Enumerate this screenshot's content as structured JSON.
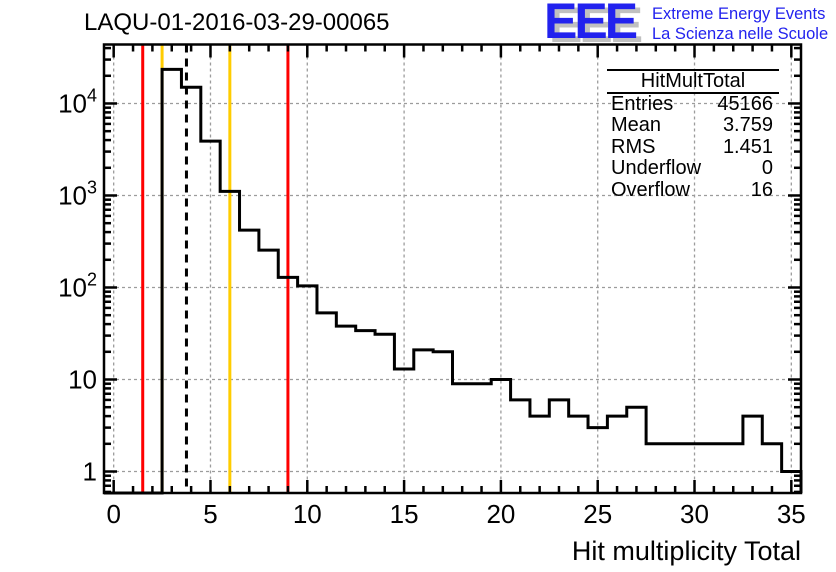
{
  "header": {
    "title": "LAQU-01-2016-03-29-00065"
  },
  "logo": {
    "letters": "EEE",
    "line1": "Extreme Energy Events",
    "line2": "La Scienza nelle Scuole",
    "color": "#2222ee",
    "shadow_color": "#c0c0c0"
  },
  "stats": {
    "title": "HitMultTotal",
    "rows": [
      {
        "label": "Entries",
        "value": "45166"
      },
      {
        "label": "Mean",
        "value": "3.759"
      },
      {
        "label": "RMS",
        "value": "1.451"
      },
      {
        "label": "Underflow",
        "value": "0"
      },
      {
        "label": "Overflow",
        "value": "16"
      }
    ]
  },
  "chart_data": {
    "type": "bar",
    "subtype": "step-histogram",
    "title": "LAQU-01-2016-03-29-00065",
    "xlabel": "Hit multiplicity Total",
    "ylabel": "",
    "y_scale": "log",
    "x_range": [
      -0.5,
      35.5
    ],
    "y_range": [
      0.584,
      43750
    ],
    "grid": true,
    "legend": "none",
    "x_major_ticks": [
      0,
      5,
      10,
      15,
      20,
      25,
      30,
      35
    ],
    "x_tick_labels": [
      "0",
      "5",
      "10",
      "15",
      "20",
      "25",
      "30",
      "35"
    ],
    "x_minor_tick_step": 1,
    "y_decades": [
      1,
      10,
      100,
      1000,
      10000
    ],
    "y_tick_labels": [
      "1",
      "10",
      "10^2",
      "10^3",
      "10^4"
    ],
    "bin_centers": [
      0,
      1,
      2,
      3,
      4,
      5,
      6,
      7,
      8,
      9,
      10,
      11,
      12,
      13,
      14,
      15,
      16,
      17,
      18,
      19,
      20,
      21,
      22,
      23,
      24,
      25,
      26,
      27,
      28,
      29,
      30,
      31,
      32,
      33,
      34,
      35
    ],
    "values": [
      0,
      0,
      0,
      23500,
      15000,
      3900,
      1110,
      420,
      255,
      129,
      104,
      53,
      38,
      34,
      31,
      13,
      21,
      20,
      9,
      9,
      10,
      6,
      4,
      6,
      4,
      3,
      4,
      5,
      2,
      2,
      2,
      2,
      2,
      4,
      2,
      1
    ],
    "mean": 3.759,
    "rms": 1.451,
    "markers": [
      {
        "x": 1.5,
        "color": "#ff0000",
        "style": "solid"
      },
      {
        "x": 2.5,
        "color": "#ffcc00",
        "style": "solid"
      },
      {
        "x": 3.759,
        "color": "#000000",
        "style": "dashed"
      },
      {
        "x": 6.0,
        "color": "#ffcc00",
        "style": "solid"
      },
      {
        "x": 9.0,
        "color": "#ff0000",
        "style": "solid"
      }
    ],
    "colors": {
      "histogram": "#000000",
      "grid": "#9c9c9c",
      "frame": "#000000"
    }
  }
}
